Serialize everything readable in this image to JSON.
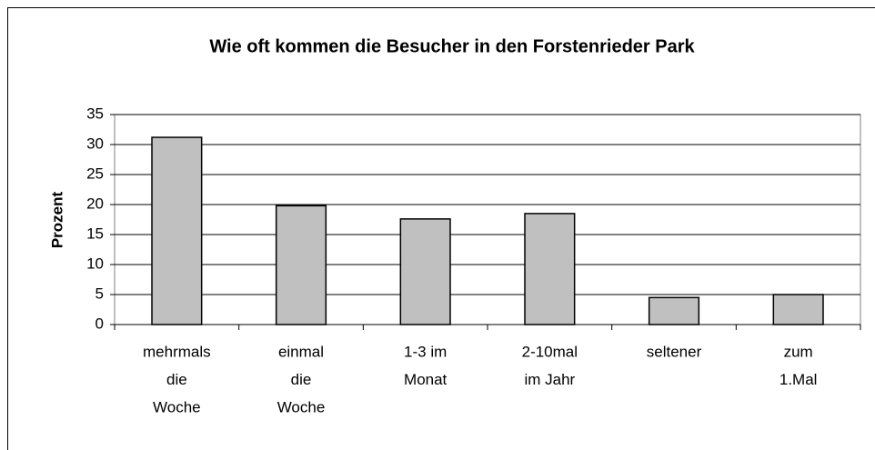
{
  "chart_data": {
    "type": "bar",
    "title": "Wie oft kommen die Besucher in den Forstenrieder Park",
    "y_label": "Prozent",
    "categories": [
      [
        "mehrmals",
        "die",
        "Woche"
      ],
      [
        "einmal",
        "die",
        "Woche"
      ],
      [
        "1-3 im",
        "Monat"
      ],
      [
        "2-10mal",
        "im Jahr"
      ],
      [
        "seltener"
      ],
      [
        "zum",
        "1.Mal"
      ]
    ],
    "values": [
      31.2,
      19.8,
      17.6,
      18.5,
      4.5,
      5.0
    ],
    "color": "#c0c0c0",
    "ylim": [
      0,
      35
    ],
    "yticks": [
      0,
      5,
      10,
      15,
      20,
      25,
      30,
      35
    ],
    "grid": true
  }
}
